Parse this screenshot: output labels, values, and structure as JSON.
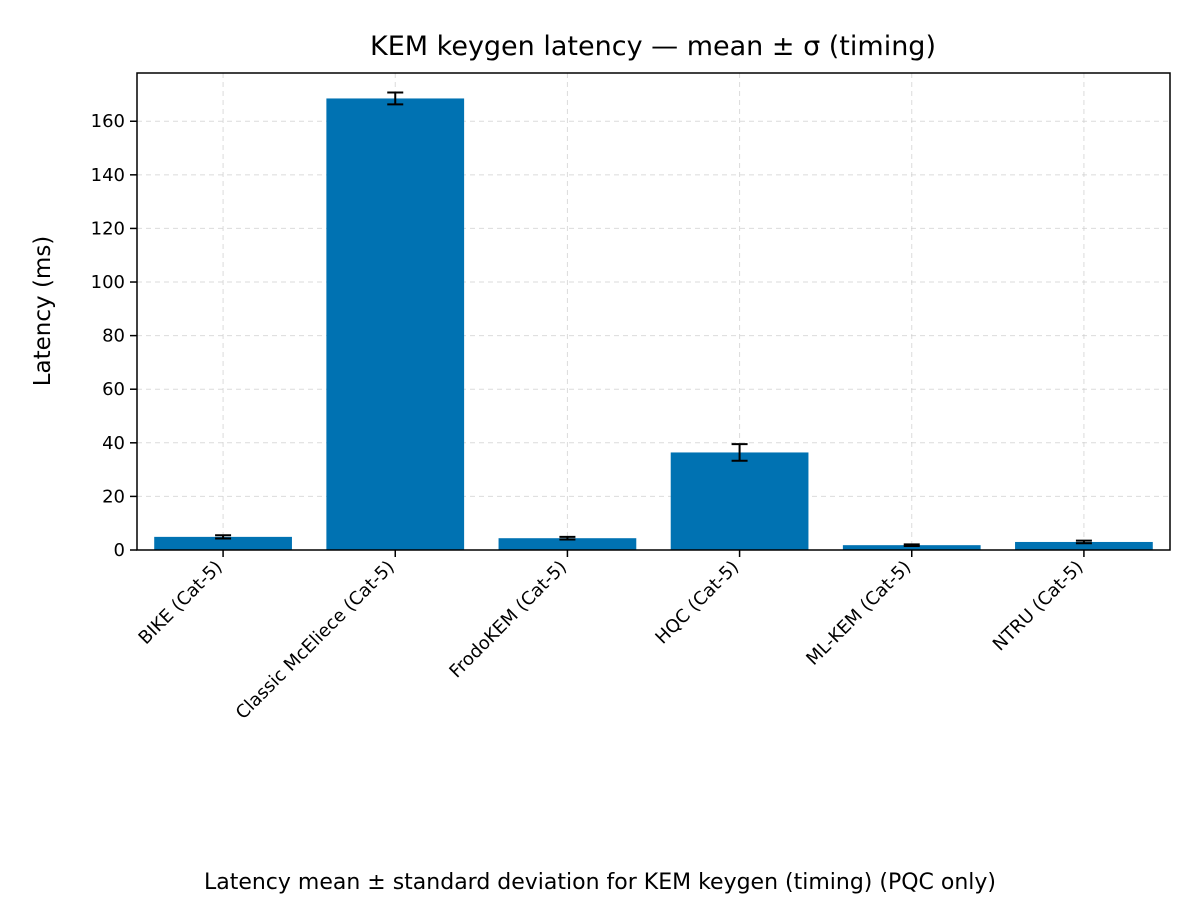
{
  "chart_data": {
    "type": "bar",
    "title": "KEM keygen latency — mean ± σ (timing)",
    "xlabel": "",
    "ylabel": "Latency (ms)",
    "caption": "Latency mean ± standard deviation for KEM keygen (timing) (PQC only)",
    "categories": [
      "BIKE (Cat-5)",
      "Classic McEliece (Cat-5)",
      "FrodoKEM (Cat-5)",
      "HQC (Cat-5)",
      "ML-KEM (Cat-5)",
      "NTRU (Cat-5)"
    ],
    "values": [
      4.9,
      168.5,
      4.4,
      36.4,
      1.8,
      3.0
    ],
    "errors": [
      0.6,
      2.2,
      0.5,
      3.1,
      0.3,
      0.5
    ],
    "ylim": [
      0,
      178
    ],
    "yticks": [
      0,
      20,
      40,
      60,
      80,
      100,
      120,
      140,
      160
    ],
    "grid": true,
    "bar_color": "#0072B2"
  }
}
